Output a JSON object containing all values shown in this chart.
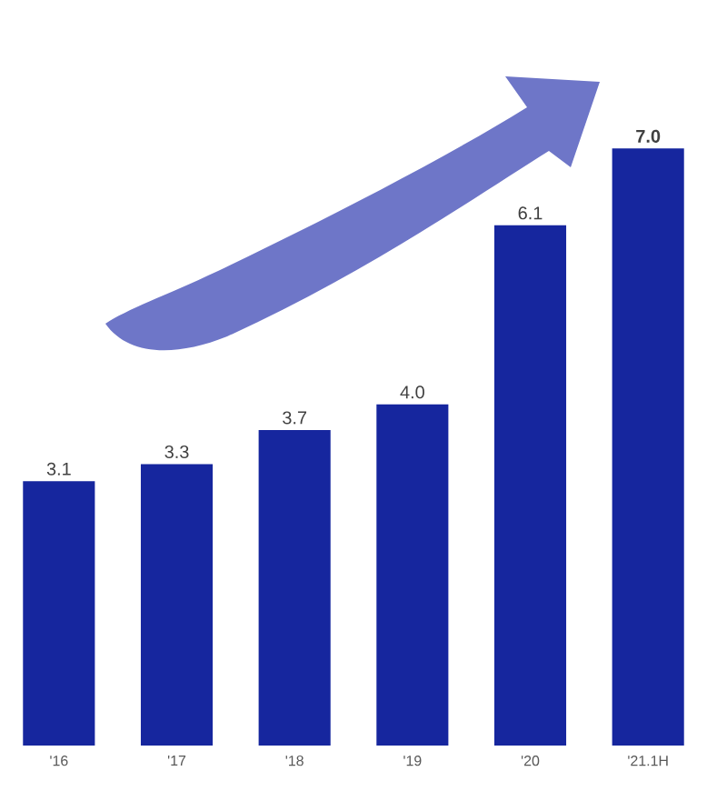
{
  "chart_data": {
    "type": "bar",
    "categories": [
      "'16",
      "'17",
      "'18",
      "'19",
      "'20",
      "'21.1H"
    ],
    "values": [
      3.1,
      3.3,
      3.7,
      4.0,
      6.1,
      7.0
    ],
    "value_labels": [
      "3.1",
      "3.3",
      "3.7",
      "4.0",
      "6.1",
      "**7.0**"
    ],
    "color": "#16269e"
  }
}
